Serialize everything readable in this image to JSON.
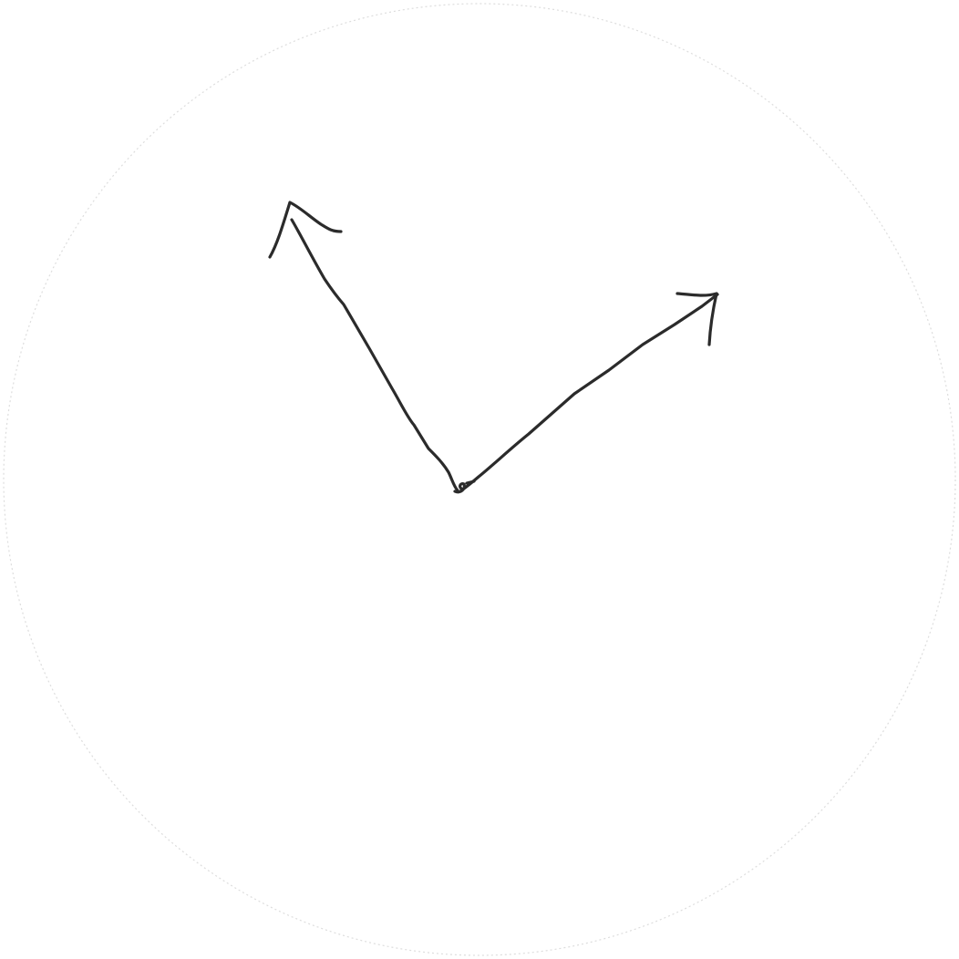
{
  "drawing": {
    "background_color": "#ffffff",
    "frame_color": "#dddddd",
    "ink_color": "#2b2b2b",
    "icon": "hand-drawn-clock-hands-icon"
  }
}
